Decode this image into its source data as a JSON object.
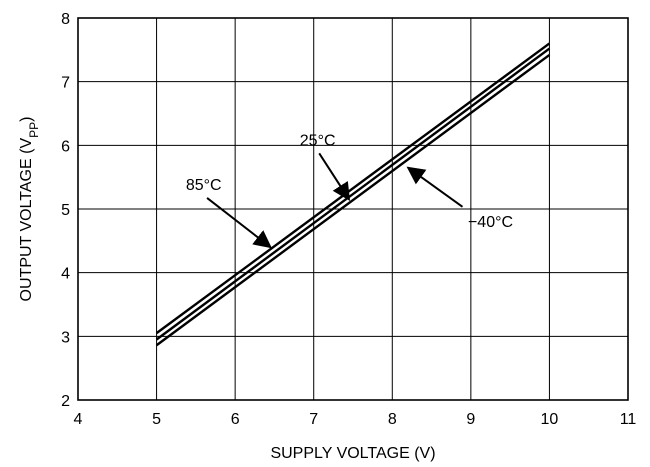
{
  "chart_data": {
    "type": "line",
    "title": "",
    "xlabel": "SUPPLY VOLTAGE (V)",
    "ylabel": {
      "main": "OUTPUT VOLTAGE (V",
      "sub": "PP",
      "close": ")"
    },
    "xlim": [
      4,
      11
    ],
    "ylim": [
      2,
      8
    ],
    "xticks": [
      "4",
      "5",
      "6",
      "7",
      "8",
      "9",
      "10",
      "11"
    ],
    "yticks": [
      "2",
      "3",
      "4",
      "5",
      "6",
      "7",
      "8"
    ],
    "grid": true,
    "legend": "none",
    "series": [
      {
        "name": "85°C",
        "x": [
          5,
          10
        ],
        "y": [
          3.05,
          7.6
        ]
      },
      {
        "name": "25°C",
        "x": [
          5,
          10
        ],
        "y": [
          2.95,
          7.52
        ]
      },
      {
        "name": "−40°C",
        "x": [
          5,
          10
        ],
        "y": [
          2.86,
          7.42
        ]
      }
    ],
    "annotations": [
      {
        "text": "25°C",
        "series": "25°C",
        "label_at": [
          7.05,
          6.0
        ],
        "arrow_to": [
          7.45,
          5.15
        ]
      },
      {
        "text": "85°C",
        "series": "85°C",
        "label_at": [
          5.6,
          5.3
        ],
        "arrow_to": [
          6.45,
          4.4
        ]
      },
      {
        "text": "−40°C",
        "series": "−40°C",
        "label_at": [
          9.25,
          4.72
        ],
        "arrow_to": [
          8.2,
          5.65
        ]
      }
    ]
  }
}
